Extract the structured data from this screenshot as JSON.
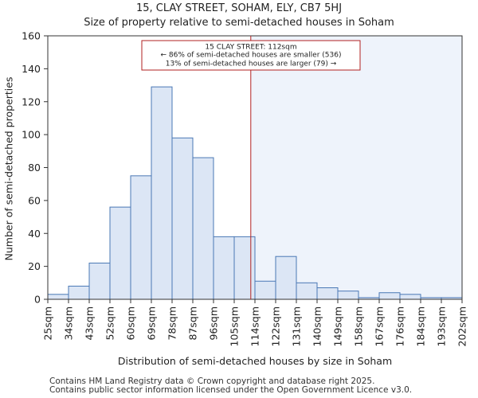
{
  "chart_data": {
    "type": "bar",
    "title": "15, CLAY STREET, SOHAM, ELY, CB7 5HJ",
    "subtitle": "Size of property relative to semi-detached houses in Soham",
    "xlabel": "Distribution of semi-detached houses by size in Soham",
    "ylabel": "Number of semi-detached properties",
    "ylim": [
      0,
      160
    ],
    "yticks": [
      0,
      20,
      40,
      60,
      80,
      100,
      120,
      140,
      160
    ],
    "bin_edges_sqm": [
      25,
      34,
      43,
      52,
      60,
      69,
      78,
      87,
      96,
      105,
      114,
      122,
      131,
      140,
      149,
      158,
      167,
      176,
      184,
      193,
      202
    ],
    "tick_labels": [
      "25sqm",
      "34sqm",
      "43sqm",
      "52sqm",
      "60sqm",
      "69sqm",
      "78sqm",
      "87sqm",
      "96sqm",
      "105sqm",
      "114sqm",
      "122sqm",
      "131sqm",
      "140sqm",
      "149sqm",
      "158sqm",
      "167sqm",
      "176sqm",
      "184sqm",
      "193sqm",
      "202sqm"
    ],
    "values": [
      3,
      8,
      22,
      56,
      75,
      129,
      98,
      86,
      38,
      38,
      11,
      26,
      10,
      7,
      5,
      1,
      4,
      3,
      1,
      1
    ],
    "property_size_sqm": 112,
    "marker_bin_fraction": 9.8,
    "annotation": {
      "line1": "15 CLAY STREET: 112sqm",
      "line2": "← 86% of semi-detached houses are smaller (536)",
      "line3": "13% of semi-detached houses are larger (79) →"
    },
    "colors": {
      "bar_fill": "#dce6f5",
      "bar_stroke": "#4a78b5",
      "marker": "#b22222",
      "highlight_fill": "#eef3fb"
    }
  },
  "footer": {
    "line1": "Contains HM Land Registry data © Crown copyright and database right 2025.",
    "line2": "Contains public sector information licensed under the Open Government Licence v3.0."
  }
}
